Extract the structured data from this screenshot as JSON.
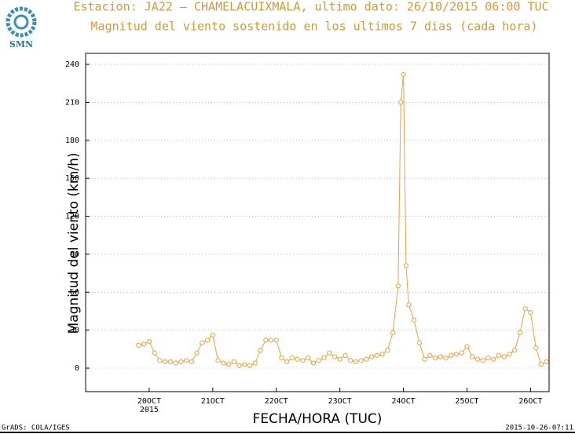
{
  "logo_text": "SMN",
  "chart_data": {
    "type": "line",
    "title": "Estacion: JA22 — CHAMELACUIXMALA, ultimo dato: 26/10/2015 06:00 TUC",
    "subtitle": "Magnitud del viento sostenido en los ultimos 7 dias (cada hora)",
    "y_label": "Magnitud del viento (km/h)",
    "x_label": "FECHA/HORA (TUC)",
    "x_year_label": "2015",
    "footer_left": "GrADS: COLA/IGES",
    "footer_right": "2015-10-26-07:11",
    "xlim": [
      0,
      175
    ],
    "ylim": [
      -18.6,
      248.7
    ],
    "xticks": [
      {
        "value": 24,
        "label": "20OCT"
      },
      {
        "value": 48,
        "label": "21OCT"
      },
      {
        "value": 72,
        "label": "22OCT"
      },
      {
        "value": 96,
        "label": "23OCT"
      },
      {
        "value": 120,
        "label": "24OCT"
      },
      {
        "value": 144,
        "label": "25OCT"
      },
      {
        "value": 168,
        "label": "26OCT"
      }
    ],
    "yticks": [
      0,
      30,
      60,
      90,
      120,
      150,
      180,
      210,
      240
    ],
    "grid": true,
    "x": [
      20,
      22,
      24,
      26,
      28,
      30,
      32,
      34,
      36,
      38,
      40,
      42,
      44,
      46,
      48,
      50,
      52,
      54,
      56,
      58,
      60,
      62,
      64,
      66,
      68,
      70,
      72,
      74,
      76,
      78,
      80,
      82,
      84,
      86,
      88,
      90,
      92,
      94,
      96,
      98,
      100,
      102,
      104,
      106,
      108,
      110,
      112,
      114,
      116,
      118,
      119,
      120,
      121,
      122,
      124,
      126,
      128,
      130,
      132,
      134,
      136,
      138,
      140,
      142,
      144,
      146,
      148,
      150,
      152,
      154,
      156,
      158,
      160,
      162,
      164,
      166,
      168,
      170,
      172,
      174
    ],
    "series": [
      {
        "name": "Magnitud del viento",
        "color": "#e8a048",
        "values": [
          18,
          19,
          21,
          12,
          6,
          5,
          5,
          4,
          5,
          6,
          5,
          12,
          20,
          22,
          26,
          6,
          4,
          3,
          5,
          2,
          3,
          2,
          4,
          14,
          22,
          22,
          22,
          8,
          5,
          8,
          7,
          6,
          8,
          4,
          6,
          8,
          12,
          9,
          7,
          10,
          6,
          5,
          6,
          7,
          9,
          10,
          11,
          14,
          28,
          65,
          210,
          232,
          81,
          50,
          38,
          20,
          7,
          10,
          8,
          9,
          8,
          10,
          11,
          12,
          17,
          9,
          7,
          6,
          8,
          7,
          10,
          9,
          11,
          14,
          28,
          47,
          44,
          16,
          3,
          5
        ]
      }
    ]
  }
}
